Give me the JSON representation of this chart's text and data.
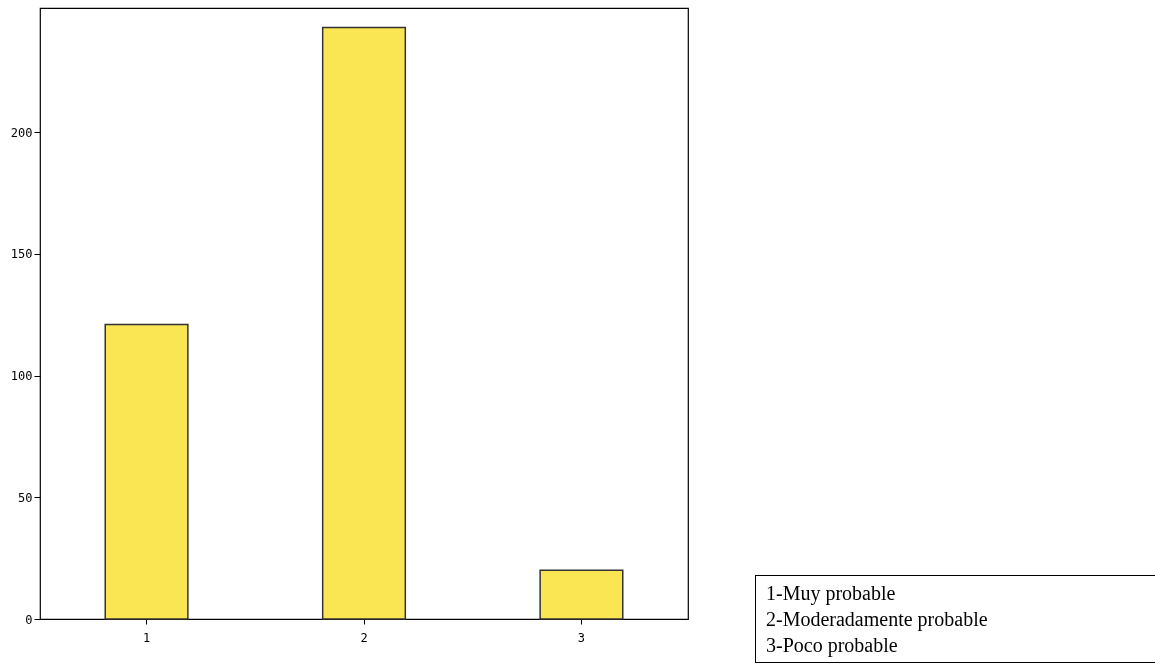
{
  "chart_data": {
    "type": "bar",
    "categories": [
      "1",
      "2",
      "3"
    ],
    "values": [
      121,
      243,
      20
    ],
    "color": "#f9e652",
    "ylim": [
      0,
      251
    ],
    "yticks": [
      0,
      50,
      100,
      150,
      200
    ],
    "grid": false,
    "annotations": [
      "1-Muy probable",
      "2-Moderadamente probable",
      "3-Poco probable"
    ]
  }
}
